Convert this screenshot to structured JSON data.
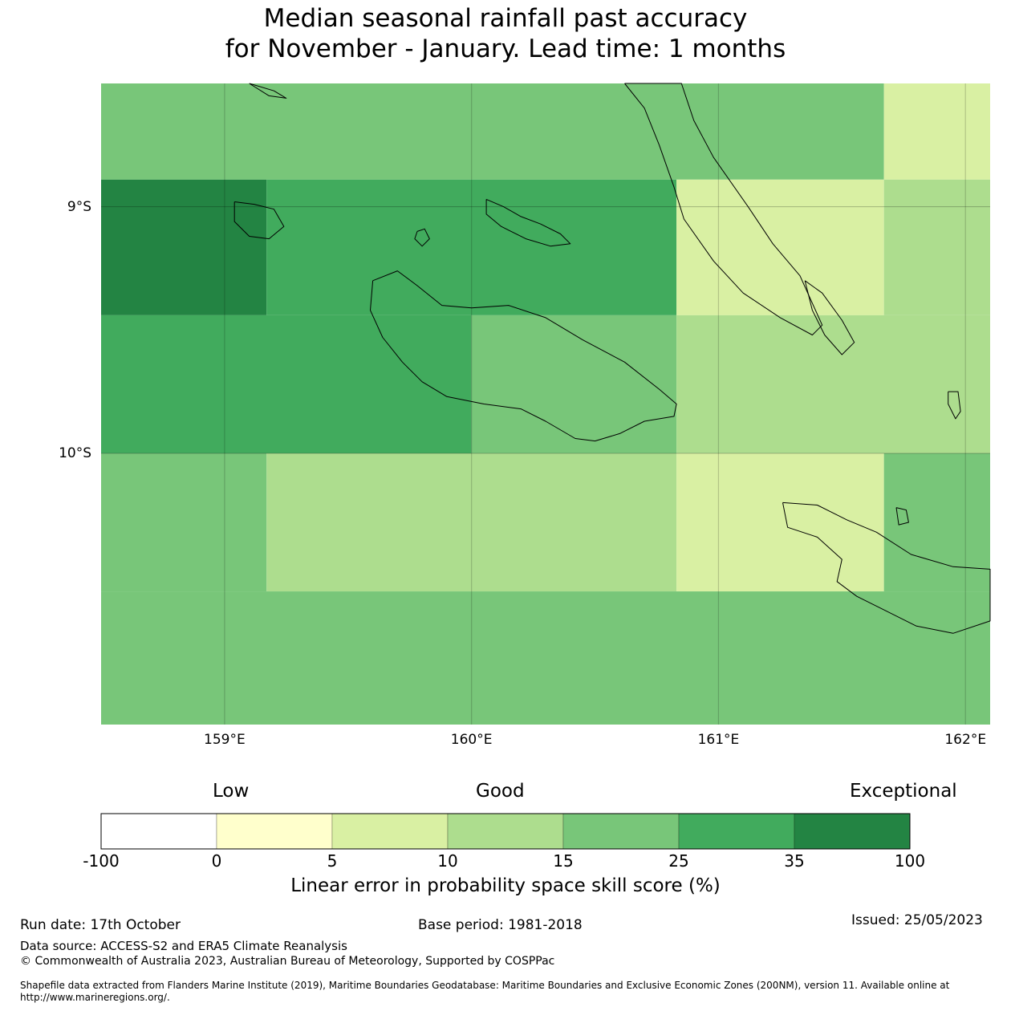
{
  "title": {
    "line1": "Median seasonal rainfall past accuracy",
    "line2": "for November - January. Lead time: 1 months"
  },
  "map": {
    "lon_range": [
      158.5,
      162.1
    ],
    "lat_range": [
      -8.5,
      -11.1
    ],
    "lon_ticks": [
      159,
      160,
      161,
      162
    ],
    "lon_tick_labels": [
      "159°E",
      "160°E",
      "161°E",
      "162°E"
    ],
    "lat_ticks": [
      -9,
      -10
    ],
    "lat_tick_labels": [
      "9°S",
      "10°S"
    ],
    "grid_cells": [
      {
        "lon": [
          158.5,
          161.67
        ],
        "lat": [
          -8.5,
          -8.89
        ],
        "score_class": "15-25"
      },
      {
        "lon": [
          161.67,
          162.1
        ],
        "lat": [
          -8.5,
          -8.89
        ],
        "score_class": "5-10"
      },
      {
        "lon": [
          158.5,
          159.17
        ],
        "lat": [
          -8.89,
          -9.44
        ],
        "score_class": "35-100"
      },
      {
        "lon": [
          159.17,
          160.83
        ],
        "lat": [
          -8.89,
          -9.44
        ],
        "score_class": "25-35"
      },
      {
        "lon": [
          160.83,
          161.67
        ],
        "lat": [
          -8.89,
          -9.44
        ],
        "score_class": "5-10"
      },
      {
        "lon": [
          161.67,
          162.1
        ],
        "lat": [
          -8.89,
          -9.44
        ],
        "score_class": "10-15"
      },
      {
        "lon": [
          158.5,
          160.0
        ],
        "lat": [
          -9.44,
          -10.0
        ],
        "score_class": "25-35"
      },
      {
        "lon": [
          160.0,
          160.83
        ],
        "lat": [
          -9.44,
          -10.0
        ],
        "score_class": "15-25"
      },
      {
        "lon": [
          160.83,
          162.1
        ],
        "lat": [
          -9.44,
          -10.0
        ],
        "score_class": "10-15"
      },
      {
        "lon": [
          158.5,
          159.17
        ],
        "lat": [
          -10.0,
          -10.56
        ],
        "score_class": "15-25"
      },
      {
        "lon": [
          159.17,
          160.83
        ],
        "lat": [
          -10.0,
          -10.56
        ],
        "score_class": "10-15"
      },
      {
        "lon": [
          160.83,
          161.67
        ],
        "lat": [
          -10.0,
          -10.56
        ],
        "score_class": "5-10"
      },
      {
        "lon": [
          161.67,
          162.1
        ],
        "lat": [
          -10.0,
          -10.56
        ],
        "score_class": "15-25"
      },
      {
        "lon": [
          158.5,
          162.1
        ],
        "lat": [
          -10.56,
          -11.1
        ],
        "score_class": "15-25"
      }
    ],
    "islands": [
      {
        "name": "guadalcanal",
        "lonlat": [
          [
            159.6,
            -9.3
          ],
          [
            159.7,
            -9.26
          ],
          [
            159.78,
            -9.32
          ],
          [
            159.88,
            -9.4
          ],
          [
            160.0,
            -9.41
          ],
          [
            160.15,
            -9.4
          ],
          [
            160.3,
            -9.45
          ],
          [
            160.45,
            -9.54
          ],
          [
            160.62,
            -9.63
          ],
          [
            160.76,
            -9.74
          ],
          [
            160.83,
            -9.8
          ],
          [
            160.82,
            -9.85
          ],
          [
            160.7,
            -9.87
          ],
          [
            160.6,
            -9.92
          ],
          [
            160.5,
            -9.95
          ],
          [
            160.42,
            -9.94
          ],
          [
            160.3,
            -9.87
          ],
          [
            160.2,
            -9.82
          ],
          [
            160.05,
            -9.8
          ],
          [
            159.9,
            -9.77
          ],
          [
            159.8,
            -9.71
          ],
          [
            159.72,
            -9.63
          ],
          [
            159.64,
            -9.53
          ],
          [
            159.59,
            -9.42
          ],
          [
            159.6,
            -9.3
          ]
        ]
      },
      {
        "name": "florida-islands",
        "lonlat": [
          [
            160.06,
            -8.97
          ],
          [
            160.13,
            -9.0
          ],
          [
            160.2,
            -9.04
          ],
          [
            160.28,
            -9.07
          ],
          [
            160.36,
            -9.11
          ],
          [
            160.4,
            -9.15
          ],
          [
            160.32,
            -9.16
          ],
          [
            160.22,
            -9.13
          ],
          [
            160.12,
            -9.08
          ],
          [
            160.06,
            -9.03
          ],
          [
            160.06,
            -8.97
          ]
        ]
      },
      {
        "name": "savo",
        "lonlat": [
          [
            159.78,
            -9.1
          ],
          [
            159.81,
            -9.09
          ],
          [
            159.83,
            -9.13
          ],
          [
            159.8,
            -9.16
          ],
          [
            159.77,
            -9.13
          ],
          [
            159.78,
            -9.1
          ]
        ]
      },
      {
        "name": "russell-islands",
        "lonlat": [
          [
            159.04,
            -8.98
          ],
          [
            159.12,
            -8.99
          ],
          [
            159.2,
            -9.01
          ],
          [
            159.24,
            -9.08
          ],
          [
            159.18,
            -9.13
          ],
          [
            159.1,
            -9.12
          ],
          [
            159.04,
            -9.06
          ],
          [
            159.04,
            -8.98
          ]
        ]
      },
      {
        "name": "malaita",
        "lonlat": [
          [
            160.62,
            -8.5
          ],
          [
            160.7,
            -8.6
          ],
          [
            160.76,
            -8.75
          ],
          [
            160.82,
            -8.92
          ],
          [
            160.86,
            -9.05
          ],
          [
            160.98,
            -9.22
          ],
          [
            161.1,
            -9.35
          ],
          [
            161.25,
            -9.45
          ],
          [
            161.38,
            -9.52
          ],
          [
            161.42,
            -9.48
          ],
          [
            161.33,
            -9.28
          ],
          [
            161.22,
            -9.15
          ],
          [
            161.12,
            -9.0
          ],
          [
            160.98,
            -8.8
          ],
          [
            160.9,
            -8.65
          ],
          [
            160.85,
            -8.5
          ],
          [
            160.62,
            -8.5
          ]
        ]
      },
      {
        "name": "small-malaita",
        "lonlat": [
          [
            161.35,
            -9.3
          ],
          [
            161.42,
            -9.35
          ],
          [
            161.5,
            -9.46
          ],
          [
            161.55,
            -9.55
          ],
          [
            161.5,
            -9.6
          ],
          [
            161.43,
            -9.52
          ],
          [
            161.38,
            -9.42
          ],
          [
            161.35,
            -9.3
          ]
        ]
      },
      {
        "name": "san-cristobal",
        "lonlat": [
          [
            161.26,
            -10.2
          ],
          [
            161.4,
            -10.21
          ],
          [
            161.52,
            -10.27
          ],
          [
            161.64,
            -10.32
          ],
          [
            161.78,
            -10.41
          ],
          [
            161.95,
            -10.46
          ],
          [
            162.1,
            -10.47
          ],
          [
            162.1,
            -10.68
          ],
          [
            161.95,
            -10.73
          ],
          [
            161.8,
            -10.7
          ],
          [
            161.68,
            -10.64
          ],
          [
            161.56,
            -10.58
          ],
          [
            161.48,
            -10.52
          ],
          [
            161.5,
            -10.43
          ],
          [
            161.4,
            -10.34
          ],
          [
            161.28,
            -10.3
          ],
          [
            161.26,
            -10.2
          ]
        ]
      },
      {
        "name": "ulawa",
        "lonlat": [
          [
            161.93,
            -9.75
          ],
          [
            161.97,
            -9.75
          ],
          [
            161.98,
            -9.83
          ],
          [
            161.96,
            -9.86
          ],
          [
            161.93,
            -9.8
          ],
          [
            161.93,
            -9.75
          ]
        ]
      },
      {
        "name": "three-sisters",
        "lonlat": [
          [
            161.72,
            -10.22
          ],
          [
            161.76,
            -10.23
          ],
          [
            161.77,
            -10.28
          ],
          [
            161.73,
            -10.29
          ],
          [
            161.72,
            -10.22
          ]
        ]
      },
      {
        "name": "north-islet",
        "lonlat": [
          [
            159.1,
            -8.5
          ],
          [
            159.2,
            -8.53
          ],
          [
            159.25,
            -8.56
          ],
          [
            159.18,
            -8.55
          ],
          [
            159.1,
            -8.5
          ]
        ]
      }
    ]
  },
  "legend": {
    "categories": [
      "Low",
      "Good",
      "Exceptional"
    ],
    "bins": [
      {
        "label": "-100",
        "color": "#ffffff"
      },
      {
        "label": "0",
        "color": "#ffffcc"
      },
      {
        "label": "5",
        "color": "#d9f0a3"
      },
      {
        "label": "10",
        "color": "#addd8e"
      },
      {
        "label": "15",
        "color": "#78c679"
      },
      {
        "label": "25",
        "color": "#41ab5d"
      },
      {
        "label": "35",
        "color": "#238443"
      }
    ],
    "last_label": "100",
    "title": "Linear error in probability space skill score (%)"
  },
  "colors": {
    "5-10": "#d9f0a3",
    "10-15": "#addd8e",
    "15-25": "#78c679",
    "25-35": "#41ab5d",
    "35-100": "#238443"
  },
  "footer": {
    "run_date": "Run date: 17th October",
    "base_period": "Base period: 1981-2018",
    "issued": "Issued: 25/05/2023",
    "data_source": "Data source: ACCESS-S2 and ERA5 Climate Reanalysis",
    "copyright": "© Commonwealth of Australia 2023, Australian Bureau of Meteorology, Supported by COSPPac",
    "shapefile": "Shapefile data extracted from Flanders Marine Institute (2019), Maritime Boundaries Geodatabase: Maritime Boundaries and Exclusive Economic Zones (200NM), version 11. Available online at http://www.marineregions.org/."
  }
}
